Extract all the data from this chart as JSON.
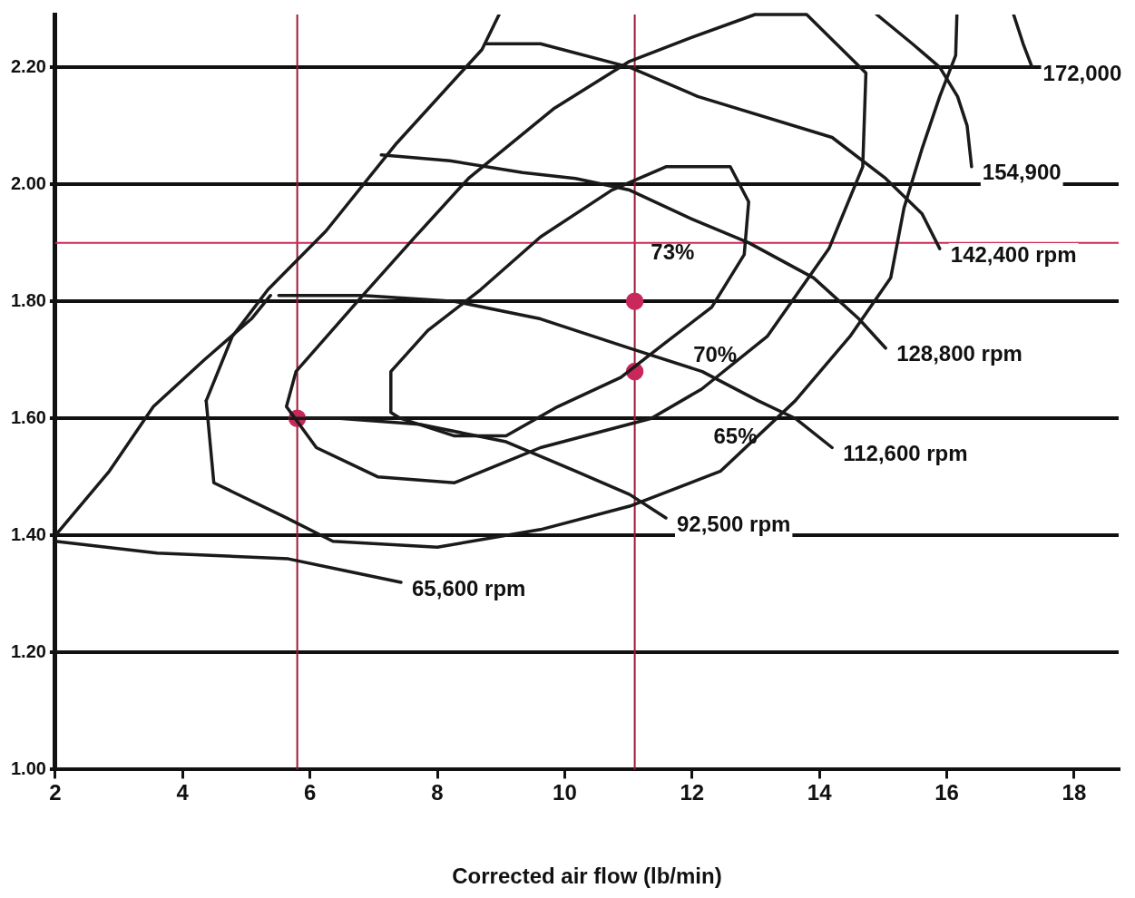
{
  "chart_data": {
    "type": "line",
    "xlabel": "Corrected air flow (lb/min)",
    "xlim": [
      2,
      18.7
    ],
    "xticks": [
      2,
      4,
      6,
      8,
      10,
      12,
      14,
      16,
      18
    ],
    "ylim": [
      1.0,
      2.29
    ],
    "yticks": [
      {
        "value": 1.0,
        "label": "1.00"
      },
      {
        "value": 1.2,
        "label": "1.20"
      },
      {
        "value": 1.4,
        "label": "1.40"
      },
      {
        "value": 1.6,
        "label": "1.60"
      },
      {
        "value": 1.8,
        "label": "1.80"
      },
      {
        "value": 2.0,
        "label": "2.00"
      },
      {
        "value": 2.2,
        "label": "2.20"
      }
    ],
    "grid": "y",
    "marker": "none",
    "line_style": "solid",
    "series": [
      {
        "name": "65,600 rpm",
        "color": "#1a1a1a",
        "x": [
          2,
          3.6,
          5.66,
          6.54,
          7.43
        ],
        "values": [
          1.39,
          1.37,
          1.36,
          1.34,
          1.32
        ]
      },
      {
        "name": "92,500 rpm",
        "color": "#1a1a1a",
        "x": [
          5.69,
          6.47,
          7.72,
          9.08,
          10.17,
          11.02,
          11.59
        ],
        "values": [
          1.6,
          1.6,
          1.59,
          1.56,
          1.51,
          1.47,
          1.43
        ]
      },
      {
        "name": "112,600 rpm",
        "color": "#1a1a1a",
        "x": [
          5.51,
          6.83,
          8.27,
          9.62,
          11.02,
          12.16,
          13.04,
          13.62,
          14.2
        ],
        "values": [
          1.81,
          1.81,
          1.8,
          1.77,
          1.72,
          1.68,
          1.63,
          1.6,
          1.55
        ]
      },
      {
        "name": "128,800 rpm",
        "color": "#1a1a1a",
        "x": [
          7.12,
          8.2,
          9.34,
          10.17,
          11.02,
          12.01,
          12.89,
          13.91,
          14.62,
          15.04
        ],
        "values": [
          2.05,
          2.04,
          2.02,
          2.01,
          1.99,
          1.94,
          1.9,
          1.84,
          1.77,
          1.72
        ]
      },
      {
        "name": "142,400 rpm",
        "color": "#1a1a1a",
        "x": [
          8.76,
          9.62,
          11.02,
          12.09,
          14.2,
          15.04,
          15.61,
          15.89
        ],
        "values": [
          2.24,
          2.24,
          2.2,
          2.15,
          2.08,
          2.01,
          1.95,
          1.89
        ]
      },
      {
        "name": "154,900",
        "color": "#1a1a1a",
        "x": [
          14.9,
          15.46,
          15.89,
          16.17,
          16.32,
          16.39
        ],
        "values": [
          2.29,
          2.24,
          2.2,
          2.15,
          2.1,
          2.03
        ]
      },
      {
        "name": "172,000",
        "color": "#1a1a1a",
        "x": [
          17.05,
          17.2,
          17.34
        ],
        "values": [
          2.29,
          2.24,
          2.2
        ]
      },
      {
        "color": "#1a1a1a",
        "x": [
          2,
          2.85,
          3.54,
          4.34,
          5.08,
          5.38
        ],
        "values": [
          1.4,
          1.51,
          1.62,
          1.7,
          1.77,
          1.81
        ]
      },
      {
        "color": "#1a1a1a",
        "x": [
          4.37,
          4.78,
          5.34,
          6.25,
          7.36,
          8.7,
          8.97
        ],
        "values": [
          1.63,
          1.74,
          1.82,
          1.92,
          2.07,
          2.23,
          2.29
        ]
      },
      {
        "color": "#1a1a1a",
        "x": [
          4.37,
          4.49,
          5.63,
          6.36,
          8.0,
          9.62,
          11.02,
          12.45,
          13.62,
          14.48,
          15.12,
          15.33,
          15.61,
          15.89,
          16.14,
          16.16
        ],
        "values": [
          1.63,
          1.49,
          1.43,
          1.39,
          1.38,
          1.41,
          1.45,
          1.51,
          1.63,
          1.74,
          1.84,
          1.96,
          2.06,
          2.15,
          2.22,
          2.29
        ]
      },
      {
        "type": "scatter",
        "marker": "circle",
        "color": "#c8285a",
        "x": [
          5.8,
          11.1,
          11.1
        ],
        "values": [
          1.6,
          1.8,
          1.68
        ]
      }
    ],
    "ref_lines": [
      {
        "axis": "x",
        "value": 5.8,
        "color": "#a01838"
      },
      {
        "axis": "x",
        "value": 11.1,
        "color": "#a01838"
      },
      {
        "axis": "y",
        "value": 1.9,
        "color": "#d02858"
      }
    ],
    "annotations": [
      "73%",
      "70%",
      "65%"
    ]
  }
}
